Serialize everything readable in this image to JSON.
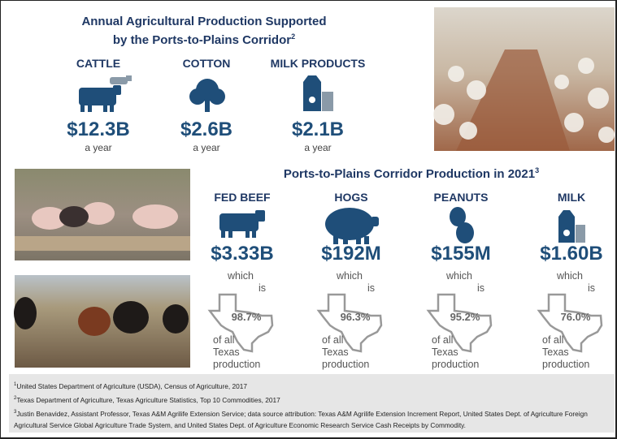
{
  "header": {
    "title_line1": "Annual Agricultural Production Supported",
    "title_line2": "by the Ports-to-Plains Corridor",
    "footnote_ref": "2"
  },
  "annual": [
    {
      "label": "CATTLE",
      "value": "$12.3B",
      "period": "a year"
    },
    {
      "label": "COTTON",
      "value": "$2.6B",
      "period": "a year"
    },
    {
      "label": "MILK PRODUCTS",
      "value": "$2.1B",
      "period": "a year"
    }
  ],
  "production": {
    "title": "Ports-to-Plains Corridor Production in 2021",
    "footnote_ref": "3",
    "items": [
      {
        "label": "FED BEEF",
        "value": "$3.33B",
        "which": "which",
        "is": "is",
        "share": "98.7%",
        "of_all": "of all",
        "texas": "Texas",
        "production": "production"
      },
      {
        "label": "HOGS",
        "value": "$192M",
        "which": "which",
        "is": "is",
        "share": "96.3%",
        "of_all": "of all",
        "texas": "Texas",
        "production": "production"
      },
      {
        "label": "PEANUTS",
        "value": "$155M",
        "which": "which",
        "is": "is",
        "share": "95.2%",
        "of_all": "of all",
        "texas": "Texas",
        "production": "production"
      },
      {
        "label": "MILK",
        "value": "$1.60B",
        "which": "which",
        "is": "is",
        "share": "76.0%",
        "of_all": "of all",
        "texas": "Texas",
        "production": "production"
      }
    ]
  },
  "footnotes": [
    {
      "num": "1",
      "text": "United States Department of Agriculture (USDA), Census of Agriculture, 2017"
    },
    {
      "num": "2",
      "text": "Texas Department of Agriculture, Texas Agriculture Statistics, Top 10 Commodities, 2017"
    },
    {
      "num": "3",
      "text": "Justin Benavidez, Assistant Professor, Texas A&M Agrilife Extension Service; data source attribution: Texas A&M Agrilife Extension Increment Report, United States Dept. of Agriculture Foreign Agricultural Service Global Agriculture Trade System, and United States Dept. of Agriculture Economic Research Service Cash Receipts by Commodity."
    }
  ]
}
